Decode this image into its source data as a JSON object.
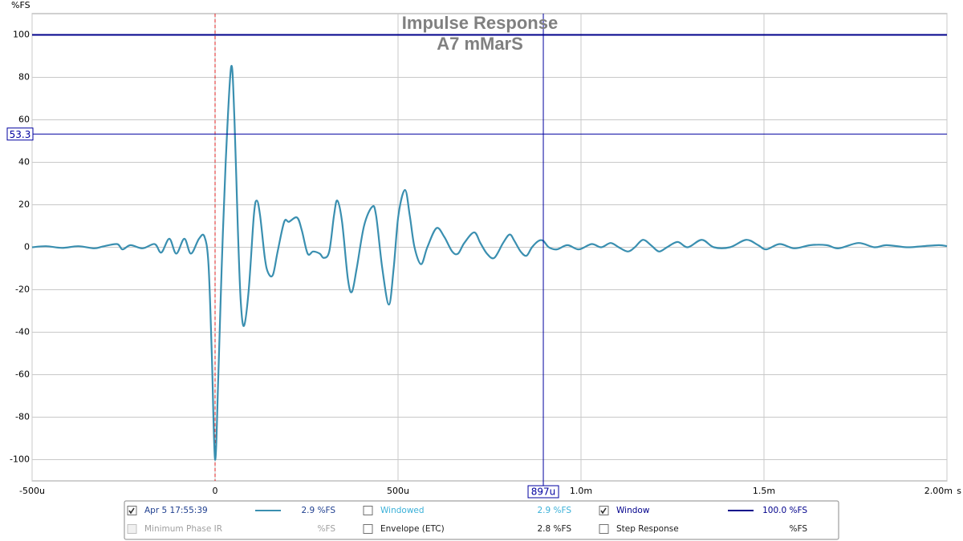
{
  "chart_data": {
    "type": "line",
    "title": "Impulse Response",
    "subtitle": "A7 mMarS",
    "y_label": "%FS",
    "x_label": "s",
    "xlim": [
      -0.0005,
      0.002
    ],
    "ylim": [
      -110,
      110
    ],
    "xticks": [
      {
        "value": -0.0005,
        "label": "-500u"
      },
      0,
      {
        "value": 0.0005,
        "label": "500u"
      },
      {
        "value": 0.001,
        "label": "1.0m"
      },
      {
        "value": 0.0015,
        "label": "1.5m"
      },
      {
        "value": 0.002,
        "label": "2.00m"
      }
    ],
    "yticks": [
      -100,
      -80,
      -60,
      -40,
      -20,
      0,
      20,
      40,
      60,
      80,
      100
    ],
    "grid": true,
    "window_level": 100,
    "window_color": "#00008b",
    "reference_time": 0,
    "y_cursor": {
      "value": 53.3,
      "label": "53.3"
    },
    "x_cursor": {
      "value": 0.000897,
      "label": "897u"
    },
    "series": [
      {
        "name": "Apr 5 17:55:39",
        "color": "#3a8fb0",
        "x": [
          -0.0005,
          -0.000462,
          -0.000418,
          -0.000374,
          -0.00033,
          -0.000308,
          -0.000268,
          -0.000253,
          -0.000231,
          -0.000198,
          -0.000165,
          -0.000147,
          -0.000125,
          -0.000106,
          -8.4e-05,
          -6.6e-05,
          -4.4e-05,
          -2.9e-05,
          -1.8e-05,
          -9e-06,
          0,
          9e-06,
          1.8e-05,
          2.9e-05,
          4.4e-05,
          5.3e-05,
          6.2e-05,
          7e-05,
          7.9e-05,
          9.2e-05,
          0.000106,
          0.000114,
          0.000123,
          0.000136,
          0.000145,
          0.000158,
          0.000171,
          0.000189,
          0.000202,
          0.000224,
          0.000237,
          0.000253,
          0.000268,
          0.000286,
          0.000297,
          0.000312,
          0.000325,
          0.000334,
          0.000347,
          0.000363,
          0.000374,
          0.000387,
          0.000407,
          0.000429,
          0.00044,
          0.000457,
          0.000475,
          0.000488,
          0.000501,
          0.000519,
          0.000532,
          0.000545,
          0.000563,
          0.00058,
          0.000605,
          0.000626,
          0.000648,
          0.000664,
          0.000681,
          0.000708,
          0.000725,
          0.000743,
          0.000763,
          0.000787,
          0.000805,
          0.000818,
          0.000835,
          0.000851,
          0.000866,
          0.000884,
          0.000897,
          0.000912,
          0.000934,
          0.000963,
          0.000994,
          0.001029,
          0.001055,
          0.001081,
          0.001103,
          0.001128,
          0.001147,
          0.001169,
          0.001191,
          0.001213,
          0.001235,
          0.001264,
          0.001292,
          0.00133,
          0.001363,
          0.001407,
          0.001451,
          0.001484,
          0.001506,
          0.001543,
          0.001583,
          0.001627,
          0.001671,
          0.001704,
          0.001758,
          0.001802,
          0.001835,
          0.00189,
          0.001934,
          0.001978,
          0.002
        ],
        "values": [
          0,
          0.5,
          -0.3,
          0.5,
          -0.5,
          0.3,
          1.5,
          -1,
          1,
          -0.5,
          1.5,
          -2.5,
          4,
          -3,
          4,
          -3,
          4,
          5,
          -8,
          -50,
          -100,
          -60,
          -10,
          40,
          85,
          60,
          10,
          -25,
          -37,
          -20,
          15,
          22,
          15,
          -5,
          -12,
          -13,
          -2,
          12,
          12,
          14,
          8,
          -3,
          -2,
          -3,
          -5,
          -2,
          15,
          22,
          12,
          -15,
          -21,
          -10,
          10,
          19,
          15,
          -10,
          -27,
          -10,
          15,
          27,
          15,
          0,
          -8,
          0,
          9,
          5,
          -2,
          -3,
          2,
          7,
          2,
          -3,
          -5,
          2,
          6,
          3,
          -2,
          -4,
          0,
          3,
          3,
          0,
          -1,
          1,
          -1,
          1.5,
          0,
          2,
          0,
          -2,
          0,
          3.5,
          1,
          -2,
          0,
          2.5,
          0,
          3.5,
          0,
          0,
          3.5,
          1,
          -1,
          1.5,
          -0.5,
          1,
          1,
          -0.5,
          2,
          0,
          1,
          0,
          0.5,
          1,
          0.5
        ]
      }
    ],
    "legend_items": [
      {
        "label": "Apr 5 17:55:39",
        "checked": true,
        "enabled": true,
        "color": "#1f3f8f",
        "line_color": "#3a8fb0",
        "readout": "2.9 %FS"
      },
      {
        "label": "Windowed",
        "checked": false,
        "enabled": true,
        "color": "#3ab0d8",
        "readout": "2.9 %FS"
      },
      {
        "label": "Window",
        "checked": true,
        "enabled": true,
        "color": "#00008b",
        "line_color": "#00008b",
        "readout": "100.0 %FS"
      },
      {
        "label": "Minimum Phase IR",
        "checked": false,
        "enabled": false,
        "color": "#a0a0a0",
        "readout": "%FS"
      },
      {
        "label": "Envelope (ETC)",
        "checked": false,
        "enabled": true,
        "color": "#202020",
        "readout": "2.8 %FS"
      },
      {
        "label": "Step Response",
        "checked": false,
        "enabled": true,
        "color": "#202020",
        "readout": "%FS"
      }
    ]
  }
}
